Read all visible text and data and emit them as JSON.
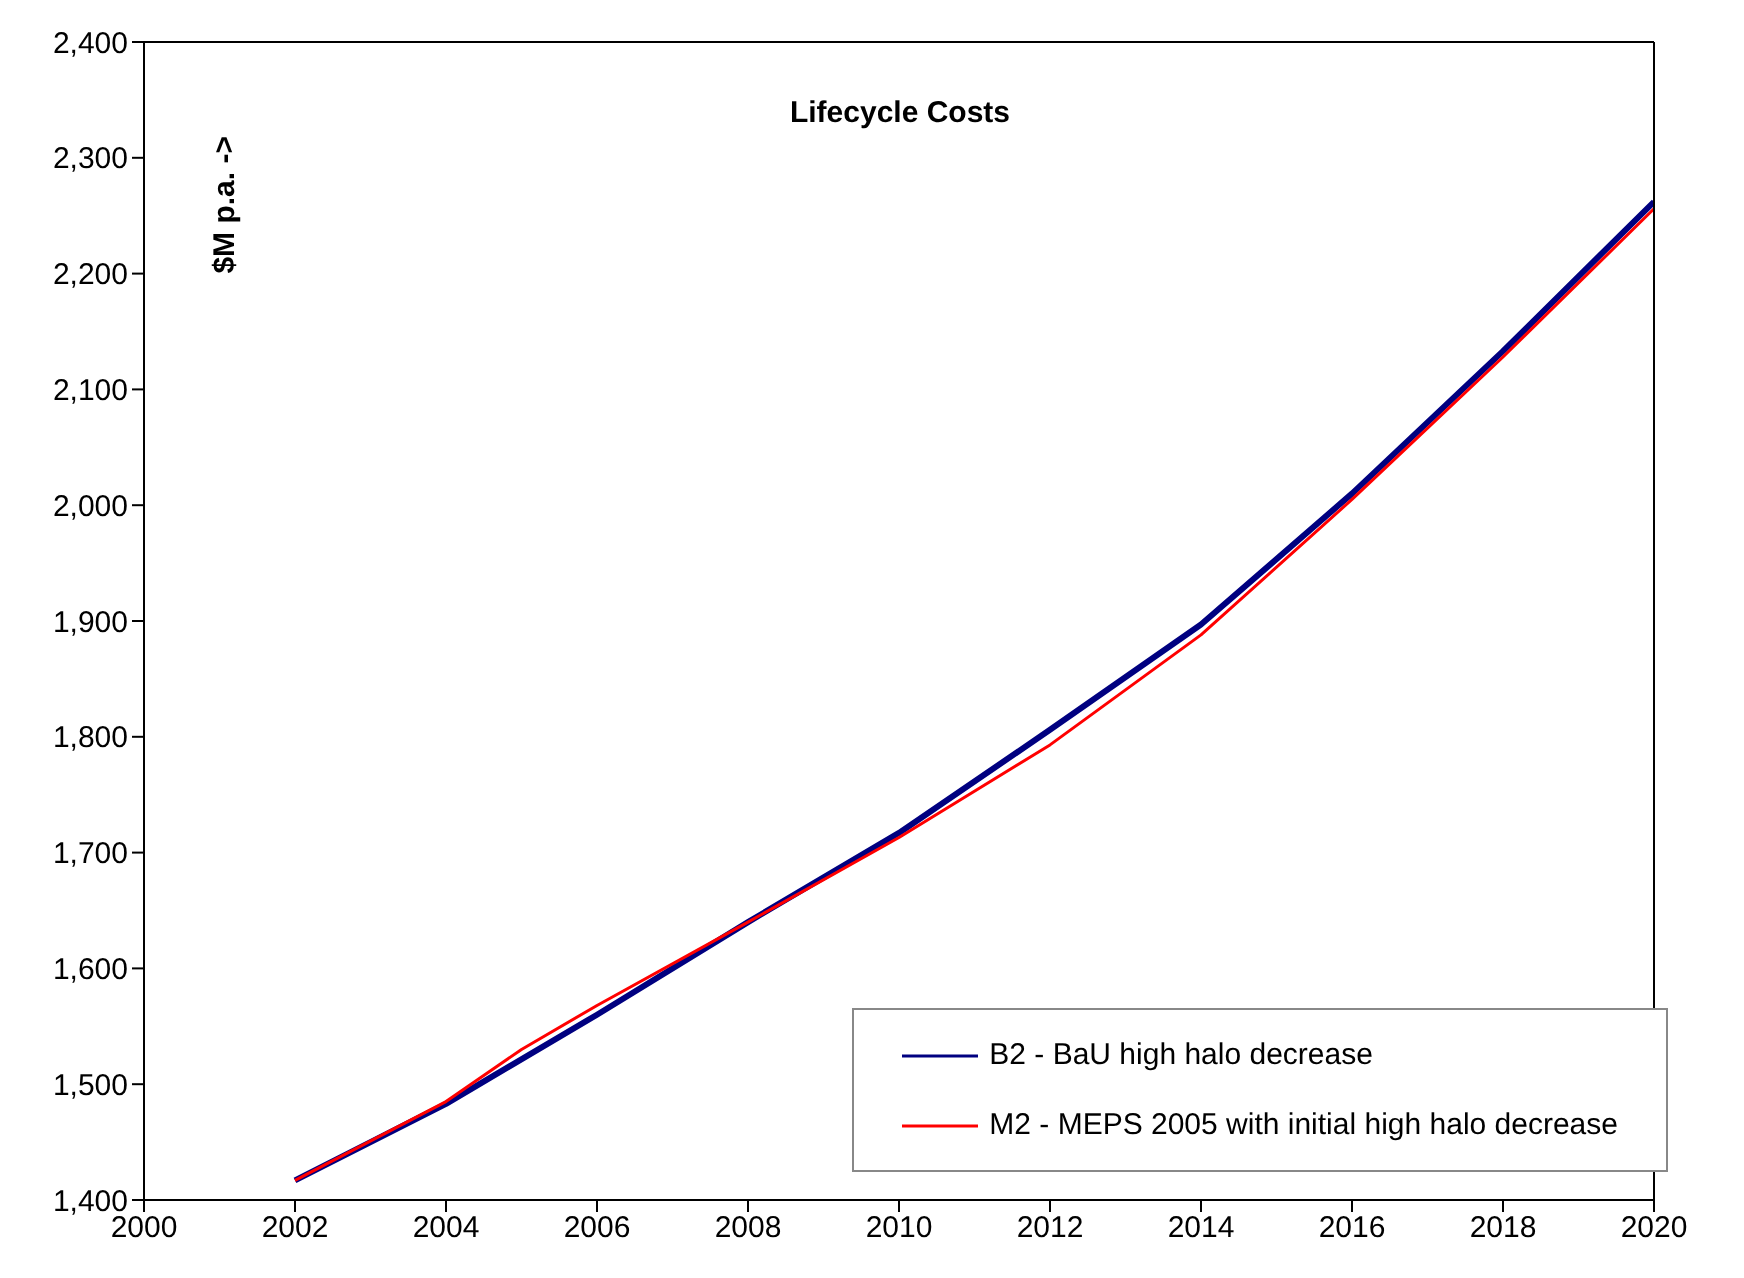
{
  "chart_data": {
    "type": "line",
    "title": "Lifecycle Costs",
    "ylabel": "$M p.a. ->",
    "xlim": [
      2000,
      2020
    ],
    "xticks": [
      2000,
      2002,
      2004,
      2006,
      2008,
      2010,
      2012,
      2014,
      2016,
      2018,
      2020
    ],
    "ylim": [
      1400,
      2400
    ],
    "yticks": [
      {
        "value": 1400,
        "label": "1,400"
      },
      {
        "value": 1500,
        "label": "1,500"
      },
      {
        "value": 1600,
        "label": "1,600"
      },
      {
        "value": 1700,
        "label": "1,700"
      },
      {
        "value": 1800,
        "label": "1,800"
      },
      {
        "value": 1900,
        "label": "1,900"
      },
      {
        "value": 2000,
        "label": "2,000"
      },
      {
        "value": 2100,
        "label": "2,100"
      },
      {
        "value": 2200,
        "label": "2,200"
      },
      {
        "value": 2300,
        "label": "2,300"
      },
      {
        "value": 2400,
        "label": "2,400"
      }
    ],
    "grid": false,
    "legend": "bottom right",
    "marker": "none",
    "line_style": "solid",
    "series": [
      {
        "name": "B2 - BaU high halo decrease",
        "color": "#000080",
        "x": [
          2002,
          2004,
          2006,
          2008,
          2010,
          2012,
          2014,
          2016,
          2018,
          2020
        ],
        "values": [
          1417,
          1483,
          1560,
          1640,
          1717,
          1806,
          1897,
          2010,
          2133,
          2262
        ]
      },
      {
        "name": "M2 - MEPS 2005 with initial high halo decrease",
        "color": "#ff0000",
        "x": [
          2002,
          2004,
          2005,
          2006,
          2008,
          2010,
          2012,
          2014,
          2016,
          2018,
          2020
        ],
        "values": [
          1417,
          1485,
          1530,
          1568,
          1640,
          1713,
          1793,
          1888,
          2005,
          2128,
          2256
        ]
      }
    ]
  }
}
